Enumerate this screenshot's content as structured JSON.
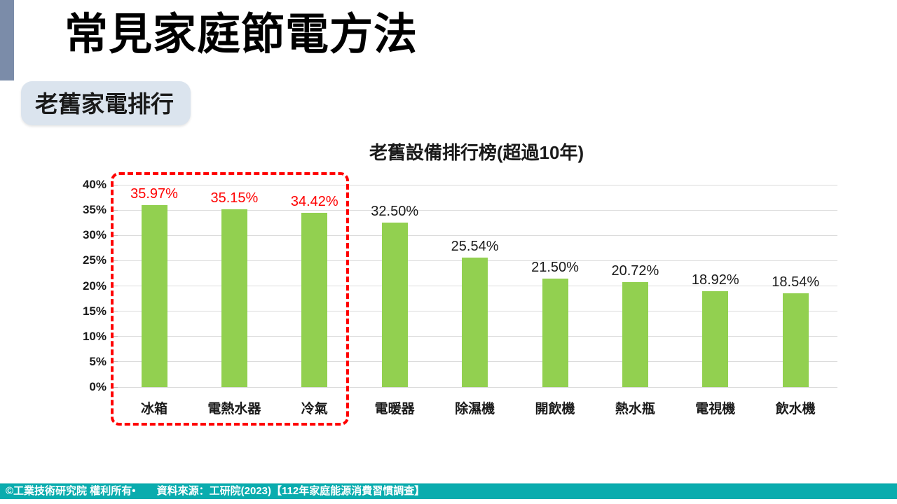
{
  "slide": {
    "title": "常見家庭節電方法",
    "badge": "老舊家電排行"
  },
  "chart_data": {
    "type": "bar",
    "title": "老舊設備排行榜(超過10年)",
    "categories": [
      "冰箱",
      "電熱水器",
      "冷氣",
      "電暖器",
      "除濕機",
      "開飲機",
      "熱水瓶",
      "電視機",
      "飲水機"
    ],
    "values": [
      35.97,
      35.15,
      34.42,
      32.5,
      25.54,
      21.5,
      20.72,
      18.92,
      18.54
    ],
    "value_labels": [
      "35.97%",
      "35.15%",
      "34.42%",
      "32.50%",
      "25.54%",
      "21.50%",
      "20.72%",
      "18.92%",
      "18.54%"
    ],
    "highlight_count": 3,
    "highlighted_categories": [
      "冰箱",
      "電熱水器",
      "冷氣"
    ],
    "y_ticks": [
      "40%",
      "35%",
      "30%",
      "25%",
      "20%",
      "15%",
      "10%",
      "5%",
      "0%"
    ],
    "ylim": [
      0,
      40
    ],
    "xlabel": "",
    "ylabel": "",
    "grid": true,
    "legend": "none"
  },
  "footer": {
    "copyright": "©工業技術研究院 權利所有•",
    "source": "資料來源：工研院(2023)【112年家庭能源消費習慣調查】"
  },
  "colors": {
    "accent_bar": "#7B8CA9",
    "badge_bg": "#DBE4EE",
    "bar_green": "#92D050",
    "highlight_red": "#FF0000",
    "footer_bg": "#0AACAE",
    "gridline": "#DCDCDC"
  }
}
